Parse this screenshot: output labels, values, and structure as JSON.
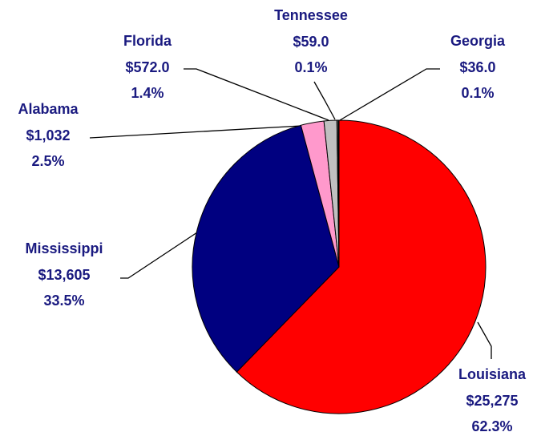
{
  "chart_data": {
    "type": "pie",
    "categories": [
      "Louisiana",
      "Mississippi",
      "Alabama",
      "Florida",
      "Tennessee",
      "Georgia"
    ],
    "values": [
      25275,
      13605,
      1032,
      572,
      59,
      36
    ],
    "value_labels": [
      "$25,275",
      "$13,605",
      "$1,032",
      "$572.0",
      "$59.0",
      "$36.0"
    ],
    "percent_labels": [
      "62.3%",
      "33.5%",
      "2.5%",
      "1.4%",
      "0.1%",
      "0.1%"
    ],
    "colors": [
      "#ff0000",
      "#000080",
      "#ff99cc",
      "#c0c0c0",
      "#808080",
      "#333333"
    ]
  }
}
